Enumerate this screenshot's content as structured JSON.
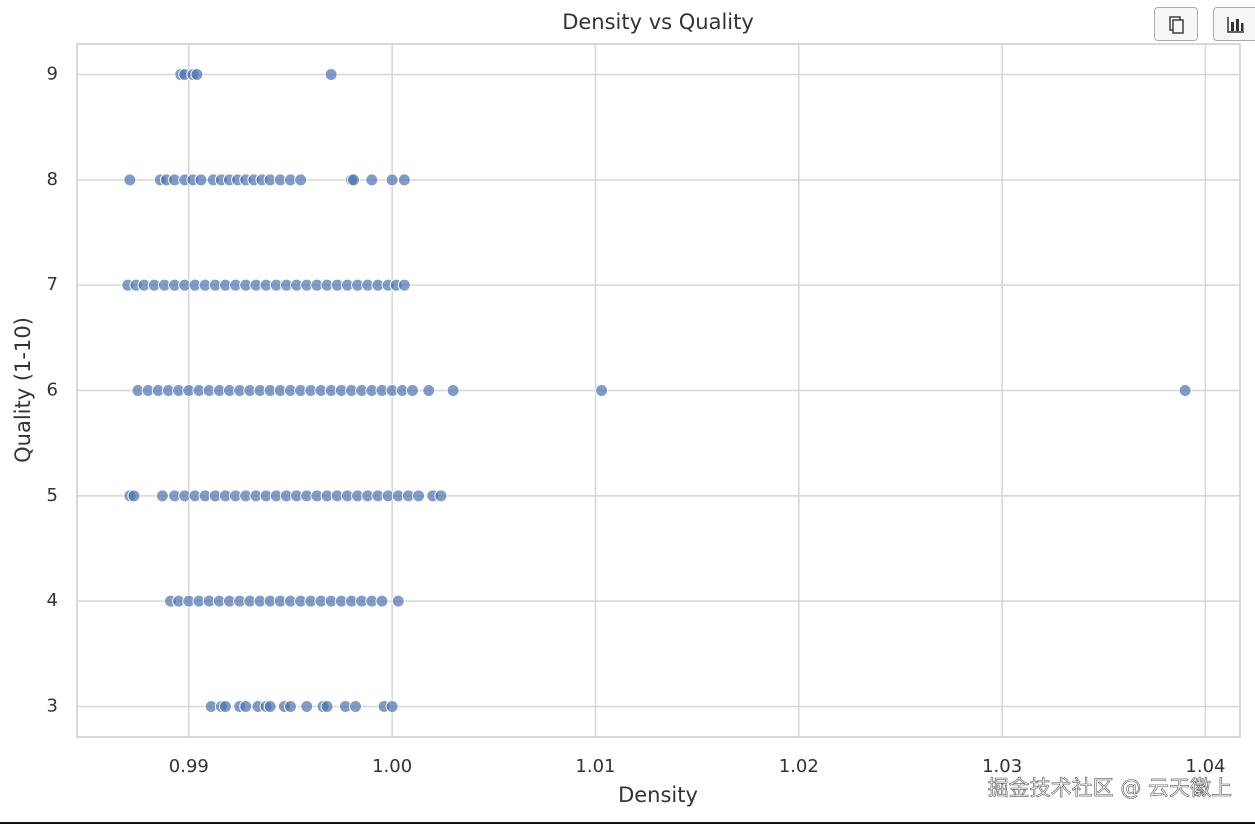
{
  "chart_data": {
    "type": "scatter",
    "title": "Density vs Quality",
    "x_label": "Density",
    "y_label": "Quality (1-10)",
    "color": "#4c72b0",
    "grid": true,
    "xlim": [
      0.9845,
      1.0417
    ],
    "ylim": [
      2.71,
      9.29
    ],
    "xticks": [
      0.99,
      {
        "value": 1.0,
        "label": "1.00"
      },
      1.01,
      1.02,
      1.03,
      1.04
    ],
    "yticks": [
      3,
      4,
      5,
      6,
      7,
      8,
      9
    ],
    "x": [
      0.9896,
      0.9898,
      0.9902,
      0.9904,
      0.997,
      0.9871,
      0.9886,
      0.9889,
      0.9893,
      0.9898,
      0.9902,
      0.9906,
      0.9912,
      0.9916,
      0.992,
      0.9924,
      0.9928,
      0.9932,
      0.9936,
      0.994,
      0.9945,
      0.995,
      0.9955,
      0.998,
      0.9981,
      0.999,
      1.0,
      1.0006,
      0.987,
      0.9874,
      0.9878,
      0.9883,
      0.9888,
      0.9893,
      0.9898,
      0.9903,
      0.9908,
      0.9913,
      0.9918,
      0.9923,
      0.9928,
      0.9933,
      0.9938,
      0.9943,
      0.9948,
      0.9953,
      0.9958,
      0.9963,
      0.9968,
      0.9973,
      0.9978,
      0.9983,
      0.9988,
      0.9993,
      0.9998,
      1.0002,
      1.0006,
      0.9875,
      0.988,
      0.9885,
      0.989,
      0.9895,
      0.99,
      0.9905,
      0.991,
      0.9915,
      0.992,
      0.9925,
      0.993,
      0.9935,
      0.994,
      0.9945,
      0.995,
      0.9955,
      0.996,
      0.9965,
      0.997,
      0.9975,
      0.998,
      0.9985,
      0.999,
      0.9995,
      1.0,
      1.0005,
      1.001,
      1.0018,
      1.003,
      1.0103,
      1.039,
      0.9871,
      0.9873,
      0.9887,
      0.9893,
      0.9898,
      0.9903,
      0.9908,
      0.9913,
      0.9918,
      0.9923,
      0.9928,
      0.9933,
      0.9938,
      0.9943,
      0.9948,
      0.9953,
      0.9958,
      0.9963,
      0.9968,
      0.9973,
      0.9978,
      0.9983,
      0.9988,
      0.9993,
      0.9998,
      1.0003,
      1.0008,
      1.0013,
      1.002,
      1.0024,
      0.9891,
      0.9895,
      0.99,
      0.9905,
      0.991,
      0.9915,
      0.992,
      0.9925,
      0.993,
      0.9935,
      0.994,
      0.9945,
      0.995,
      0.9955,
      0.996,
      0.9965,
      0.997,
      0.9975,
      0.998,
      0.9985,
      0.999,
      0.9995,
      1.0003,
      0.9911,
      0.9916,
      0.9918,
      0.9925,
      0.9928,
      0.9934,
      0.9938,
      0.994,
      0.9947,
      0.995,
      0.9958,
      0.9966,
      0.9968,
      0.9977,
      0.9982,
      0.9996,
      1.0
    ],
    "values": [
      9,
      9,
      9,
      9,
      9,
      8,
      8,
      8,
      8,
      8,
      8,
      8,
      8,
      8,
      8,
      8,
      8,
      8,
      8,
      8,
      8,
      8,
      8,
      8,
      8,
      8,
      8,
      8,
      7,
      7,
      7,
      7,
      7,
      7,
      7,
      7,
      7,
      7,
      7,
      7,
      7,
      7,
      7,
      7,
      7,
      7,
      7,
      7,
      7,
      7,
      7,
      7,
      7,
      7,
      7,
      7,
      7,
      6,
      6,
      6,
      6,
      6,
      6,
      6,
      6,
      6,
      6,
      6,
      6,
      6,
      6,
      6,
      6,
      6,
      6,
      6,
      6,
      6,
      6,
      6,
      6,
      6,
      6,
      6,
      6,
      6,
      6,
      6,
      6,
      5,
      5,
      5,
      5,
      5,
      5,
      5,
      5,
      5,
      5,
      5,
      5,
      5,
      5,
      5,
      5,
      5,
      5,
      5,
      5,
      5,
      5,
      5,
      5,
      5,
      5,
      5,
      5,
      5,
      5,
      4,
      4,
      4,
      4,
      4,
      4,
      4,
      4,
      4,
      4,
      4,
      4,
      4,
      4,
      4,
      4,
      4,
      4,
      4,
      4,
      4,
      4,
      4,
      3,
      3,
      3,
      3,
      3,
      3,
      3,
      3,
      3,
      3,
      3,
      3,
      3,
      3,
      3,
      3,
      3
    ]
  },
  "watermark": "掘金技术社区 @ 云天徽上"
}
